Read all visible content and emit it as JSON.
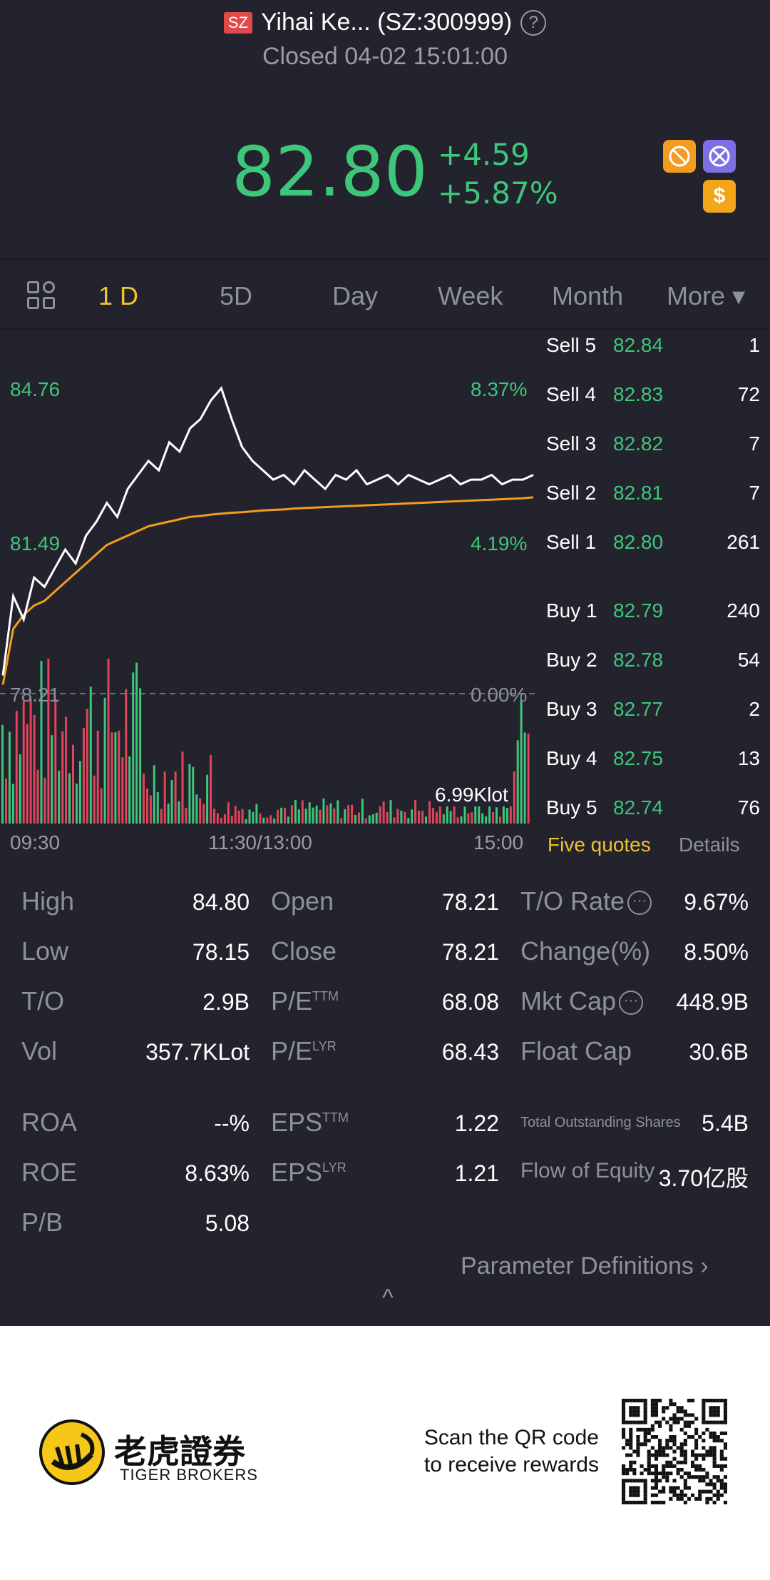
{
  "header": {
    "market_badge": "SZ",
    "title": "Yihai Ke... (SZ:300999)",
    "status": "Closed 04-02 15:01:00",
    "price": "82.80",
    "change": "+4.59",
    "change_pct": "+5.87%",
    "dollar_icon": "$"
  },
  "tabs": [
    {
      "label": "1 D",
      "active": true
    },
    {
      "label": "5D"
    },
    {
      "label": "Day"
    },
    {
      "label": "Week"
    },
    {
      "label": "Month"
    },
    {
      "label": "More ▾"
    }
  ],
  "chart_labels": {
    "high_price": "84.76",
    "high_pct": "8.37%",
    "mid_price": "81.49",
    "mid_pct": "4.19%",
    "base_price": "78.21",
    "base_pct": "0.00%",
    "volume_label": "6.99Klot",
    "time_start": "09:30",
    "time_mid": "11:30/13:00",
    "time_end": "15:00"
  },
  "chart_data": {
    "type": "line",
    "y_range": [
      78.21,
      84.76
    ],
    "series": [
      {
        "values": [
          78.6,
          80.3,
          79.8,
          80.7,
          80.5,
          80.9,
          81.3,
          81.0,
          81.6,
          81.9,
          82.3,
          82.0,
          82.6,
          82.9,
          83.2,
          83.0,
          83.6,
          83.4,
          83.9,
          84.1,
          84.5,
          84.76,
          84.1,
          83.5,
          83.2,
          83.0,
          82.8,
          82.9,
          82.7,
          83.0,
          82.8,
          82.6,
          82.9,
          82.8,
          83.0,
          82.7,
          82.8,
          82.9,
          82.7,
          82.9,
          82.8,
          82.7,
          82.8,
          82.9,
          82.7,
          82.8,
          82.8,
          82.9,
          82.7,
          82.8,
          82.8,
          82.9
        ]
      },
      {
        "values": [
          78.4,
          79.6,
          79.9,
          80.1,
          80.2,
          80.4,
          80.6,
          80.8,
          81.0,
          81.2,
          81.4,
          81.5,
          81.6,
          81.7,
          81.8,
          81.85,
          81.9,
          81.95,
          82.0,
          82.02,
          82.05,
          82.07,
          82.09,
          82.1,
          82.12,
          82.14,
          82.15,
          82.16,
          82.18,
          82.19,
          82.2,
          82.21,
          82.22,
          82.23,
          82.24,
          82.25,
          82.26,
          82.27,
          82.28,
          82.29,
          82.3,
          82.31,
          82.32,
          82.33,
          82.34,
          82.35,
          82.36,
          82.37,
          82.38,
          82.39,
          82.4,
          82.42
        ]
      }
    ]
  },
  "order_book": {
    "sell": [
      {
        "label": "Sell 5",
        "price": "82.84",
        "qty": "1"
      },
      {
        "label": "Sell 4",
        "price": "82.83",
        "qty": "72"
      },
      {
        "label": "Sell 3",
        "price": "82.82",
        "qty": "7"
      },
      {
        "label": "Sell 2",
        "price": "82.81",
        "qty": "7"
      },
      {
        "label": "Sell 1",
        "price": "82.80",
        "qty": "261"
      }
    ],
    "buy": [
      {
        "label": "Buy 1",
        "price": "82.79",
        "qty": "240"
      },
      {
        "label": "Buy 2",
        "price": "82.78",
        "qty": "54"
      },
      {
        "label": "Buy 3",
        "price": "82.77",
        "qty": "2"
      },
      {
        "label": "Buy 4",
        "price": "82.75",
        "qty": "13"
      },
      {
        "label": "Buy 5",
        "price": "82.74",
        "qty": "76"
      }
    ],
    "five_quotes": "Five quotes",
    "details": "Details"
  },
  "stats": {
    "high": {
      "label": "High",
      "value": "84.80"
    },
    "low": {
      "label": "Low",
      "value": "78.15"
    },
    "to": {
      "label": "T/O",
      "value": "2.9B"
    },
    "vol": {
      "label": "Vol",
      "value": "357.7KLot"
    },
    "open": {
      "label": "Open",
      "value": "78.21"
    },
    "close": {
      "label": "Close",
      "value": "78.21"
    },
    "pe_ttm": {
      "label": "P/E",
      "sup": "TTM",
      "value": "68.08"
    },
    "pe_lyr": {
      "label": "P/E",
      "sup": "LYR",
      "value": "68.43"
    },
    "to_rate": {
      "label": "T/O Rate",
      "value": "9.67%"
    },
    "change": {
      "label": "Change(%)",
      "value": "8.50%"
    },
    "mkt_cap": {
      "label": "Mkt Cap",
      "value": "448.9B"
    },
    "float_cap": {
      "label": "Float Cap",
      "value": "30.6B"
    },
    "roa": {
      "label": "ROA",
      "value": "--%"
    },
    "roe": {
      "label": "ROE",
      "value": "8.63%"
    },
    "pb": {
      "label": "P/B",
      "value": "5.08"
    },
    "eps_ttm": {
      "label": "EPS",
      "sup": "TTM",
      "value": "1.22"
    },
    "eps_lyr": {
      "label": "EPS",
      "sup": "LYR",
      "value": "1.21"
    },
    "total_shares": {
      "label": "Total Outstanding Shares",
      "value": "5.4B"
    },
    "flow_equity": {
      "label": "Flow of Equity",
      "value": "3.70亿股"
    },
    "param_def": "Parameter Definitions  ›",
    "collapse": "^"
  },
  "footer": {
    "brand_cn": "老虎證券",
    "brand_en": "TIGER BROKERS",
    "scan_line1": "Scan the QR code",
    "scan_line2": "to receive rewards"
  },
  "colors": {
    "background": "#22232d",
    "up_green": "#3ec67a",
    "accent_yellow": "#f1c232",
    "avg_line": "#f39c1f",
    "down_red": "#e0455a"
  }
}
